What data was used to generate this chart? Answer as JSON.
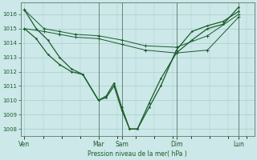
{
  "xlabel": "Pression niveau de la mer( hPa )",
  "bg_color": "#cce8e8",
  "grid_color": "#aacccc",
  "line_color": "#1a5c2a",
  "ylim": [
    1007.5,
    1016.8
  ],
  "yticks": [
    1008,
    1009,
    1010,
    1011,
    1012,
    1013,
    1014,
    1015,
    1016
  ],
  "xlim": [
    0,
    30
  ],
  "day_labels": [
    "Ven",
    "Mar",
    "Sam",
    "Dim",
    "Lun"
  ],
  "day_positions": [
    0.5,
    10,
    13,
    20,
    28
  ],
  "series1": {
    "x": [
      0.5,
      3,
      5,
      7,
      10,
      13,
      16,
      20,
      24,
      28
    ],
    "y": [
      1016.3,
      1015.0,
      1014.8,
      1014.6,
      1014.5,
      1014.2,
      1013.8,
      1013.7,
      1014.5,
      1016.0
    ]
  },
  "series2": {
    "x": [
      0.5,
      3,
      5,
      7,
      10,
      13,
      16,
      20,
      24,
      28
    ],
    "y": [
      1015.0,
      1014.8,
      1014.6,
      1014.4,
      1014.3,
      1013.9,
      1013.5,
      1013.3,
      1013.5,
      1015.8
    ]
  },
  "series3": {
    "x": [
      0.5,
      2,
      3.5,
      5,
      6.5,
      8,
      10,
      11,
      12,
      13,
      14,
      15,
      16.5,
      18,
      20,
      22,
      24,
      26,
      28
    ],
    "y": [
      1016.3,
      1015.0,
      1014.2,
      1013.0,
      1012.2,
      1011.8,
      1010.0,
      1010.2,
      1011.0,
      1009.3,
      1008.0,
      1008.0,
      1009.5,
      1011.0,
      1013.5,
      1014.8,
      1015.2,
      1015.5,
      1016.2
    ]
  },
  "series4": {
    "x": [
      0.5,
      2,
      3.5,
      5,
      6.5,
      8,
      10,
      11,
      12,
      13,
      14,
      15,
      16.5,
      18,
      20,
      22,
      24,
      26,
      28
    ],
    "y": [
      1015.0,
      1014.3,
      1013.2,
      1012.5,
      1012.0,
      1011.8,
      1010.0,
      1010.3,
      1011.2,
      1009.5,
      1008.0,
      1008.0,
      1009.8,
      1011.5,
      1013.3,
      1014.2,
      1015.0,
      1015.3,
      1016.5
    ]
  }
}
